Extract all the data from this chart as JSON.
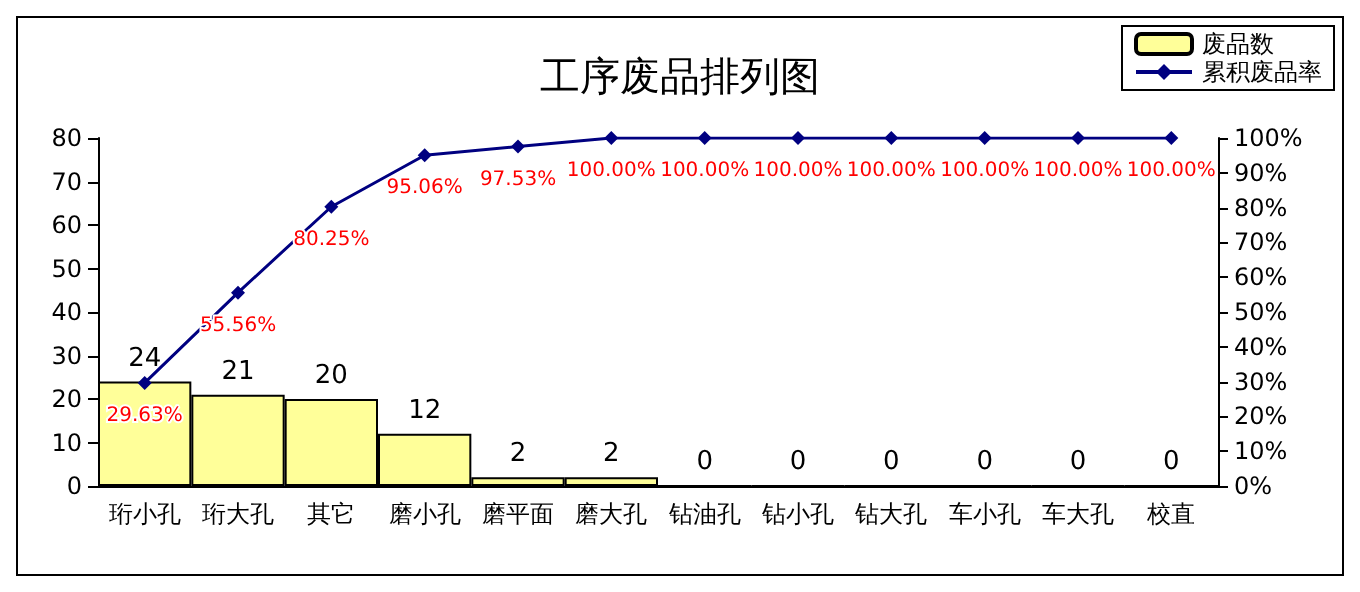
{
  "chart_data": {
    "type": "bar",
    "title": "工序废品排列图",
    "categories": [
      "珩小孔",
      "珩大孔",
      "其它",
      "磨小孔",
      "磨平面",
      "磨大孔",
      "钻油孔",
      "钻小孔",
      "钻大孔",
      "车小孔",
      "车大孔",
      "校直"
    ],
    "series": [
      {
        "name": "废品数",
        "color": "#ffff99",
        "values": [
          24,
          21,
          20,
          12,
          2,
          2,
          0,
          0,
          0,
          0,
          0,
          0
        ],
        "data_labels": true
      },
      {
        "name": "累积废品率",
        "type": "line",
        "axis": "y2",
        "color": "#000080",
        "marker": "diamond",
        "values": [
          29.63,
          55.56,
          80.25,
          95.06,
          97.53,
          100,
          100,
          100,
          100,
          100,
          100,
          100
        ],
        "value_labels": [
          "29.63%",
          "55.56%",
          "80.25%",
          "95.06%",
          "97.53%",
          "100.00%",
          "100.00%",
          "100.00%",
          "100.00%",
          "100.00%",
          "100.00%",
          "100.00%"
        ]
      }
    ],
    "ylim": [
      0,
      80
    ],
    "yticks": [
      0,
      10,
      20,
      30,
      40,
      50,
      60,
      70,
      80
    ],
    "y2lim": [
      0,
      100
    ],
    "y2ticks": [
      {
        "value": 0,
        "label": "0%"
      },
      {
        "value": 10,
        "label": "10%"
      },
      {
        "value": 20,
        "label": "20%"
      },
      {
        "value": 30,
        "label": "30%"
      },
      {
        "value": 40,
        "label": "40%"
      },
      {
        "value": 50,
        "label": "50%"
      },
      {
        "value": 60,
        "label": "60%"
      },
      {
        "value": 70,
        "label": "70%"
      },
      {
        "value": 80,
        "label": "80%"
      },
      {
        "value": 90,
        "label": "90%"
      },
      {
        "value": 100,
        "label": "100%"
      }
    ],
    "legend": "top right",
    "grid": false
  }
}
